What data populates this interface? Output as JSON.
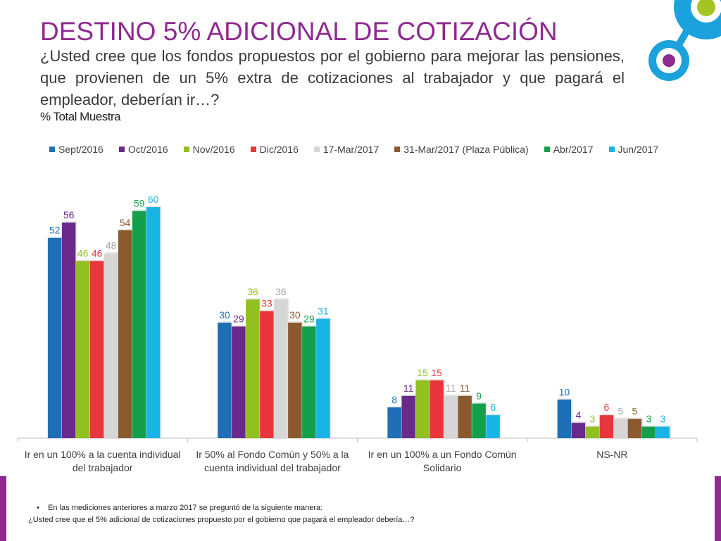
{
  "header": {
    "title": "DESTINO 5% ADICIONAL DE COTIZACIÓN",
    "question": "¿Usted cree que los fondos propuestos por el gobierno para mejorar las pensiones, que provienen de un 5% extra de cotizaciones al trabajador y que pagará el empleador, deberían ir…?",
    "subtitle": "% Total Muestra"
  },
  "footnote": {
    "line1": "En las mediciones anteriores a marzo 2017 se preguntó de la siguiente manera:",
    "line2": "¿Usted cree que el 5% adicional de cotizaciones propuesto por el gobierno que pagará el empleador debería…?"
  },
  "colors": {
    "brand_purple": "#8e2a90",
    "logo_blue": "#1ba1dc",
    "logo_green": "#a2c523"
  },
  "chart_data": {
    "type": "bar",
    "categories": [
      "Ir en un 100% a la cuenta individual del trabajador",
      "Ir 50% al Fondo Común y 50% a la cuenta individual del trabajador",
      "Ir en un 100% a un Fondo Común Solidario",
      "NS-NR"
    ],
    "ylim": [
      0,
      60
    ],
    "legend_position": "top",
    "grid": false,
    "series": [
      {
        "name": "Sept/2016",
        "color": "#1f6fb7",
        "values": [
          52,
          30,
          8,
          10
        ]
      },
      {
        "name": "Oct/2016",
        "color": "#6a2a8c",
        "values": [
          56,
          29,
          11,
          4
        ]
      },
      {
        "name": "Nov/2016",
        "color": "#92c01f",
        "values": [
          46,
          36,
          15,
          3
        ]
      },
      {
        "name": "Dic/2016",
        "color": "#e8363c",
        "values": [
          46,
          33,
          15,
          6
        ]
      },
      {
        "name": "17-Mar/2017",
        "color": "#d6d6d6",
        "values": [
          48,
          36,
          11,
          5
        ]
      },
      {
        "name": "31-Mar/2017 (Plaza Pública)",
        "color": "#8a5a2e",
        "values": [
          54,
          30,
          11,
          5
        ]
      },
      {
        "name": "Abr/2017",
        "color": "#14a04b",
        "values": [
          59,
          29,
          9,
          3
        ]
      },
      {
        "name": "Jun/2017",
        "color": "#19b4e6",
        "values": [
          60,
          31,
          6,
          3
        ]
      }
    ]
  }
}
